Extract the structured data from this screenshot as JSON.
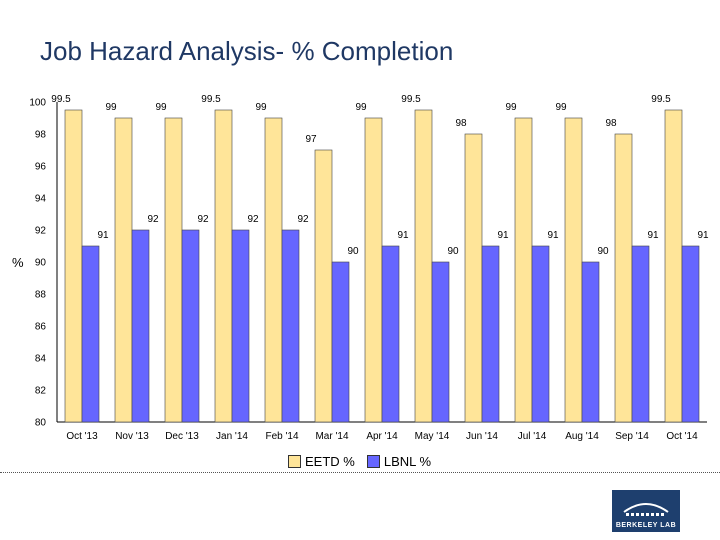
{
  "slide": {
    "title": "Job Hazard Analysis- % Completion"
  },
  "chart_data": {
    "type": "bar",
    "title": "Job Hazard Analysis- % Completion",
    "xlabel": "",
    "ylabel": "%",
    "ylim": [
      80,
      100
    ],
    "yticks": [
      80,
      82,
      84,
      86,
      88,
      90,
      92,
      94,
      96,
      98,
      100
    ],
    "categories": [
      "Oct '13",
      "Nov '13",
      "Dec '13",
      "Jan '14",
      "Feb '14",
      "Mar '14",
      "Apr '14",
      "May '14",
      "Jun '14",
      "Jul '14",
      "Aug '14",
      "Sep '14",
      "Oct '14"
    ],
    "series": [
      {
        "name": "EETD %",
        "color": "#ffe599",
        "values": [
          99.5,
          99,
          99,
          99.5,
          99,
          97,
          99,
          99.5,
          98,
          99,
          99,
          98,
          99.5
        ]
      },
      {
        "name": "LBNL %",
        "color": "#6666ff",
        "values": [
          91,
          92,
          92,
          92,
          92,
          90,
          91,
          90,
          91,
          91,
          90,
          91,
          91
        ]
      }
    ],
    "legend_position": "bottom",
    "grid": false
  },
  "logo": {
    "text": "BERKELEY LAB"
  }
}
